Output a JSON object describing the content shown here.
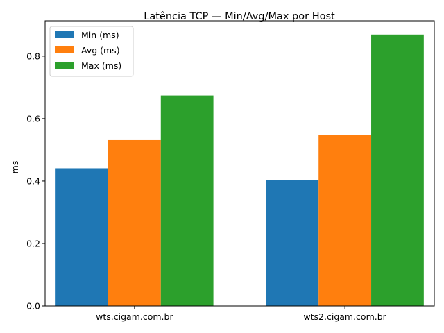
{
  "chart_data": {
    "type": "bar",
    "title": "Latência TCP — Min/Avg/Max por Host",
    "xlabel": "",
    "ylabel": "ms",
    "categories": [
      "wts.cigam.com.br",
      "wts2.cigam.com.br"
    ],
    "series": [
      {
        "name": "Min (ms)",
        "color": "#1f77b4",
        "values": [
          0.441,
          0.404
        ]
      },
      {
        "name": "Avg (ms)",
        "color": "#ff7f0e",
        "values": [
          0.531,
          0.547
        ]
      },
      {
        "name": "Max (ms)",
        "color": "#2ca02c",
        "values": [
          0.674,
          0.869
        ]
      }
    ],
    "ylim": [
      0,
      0.913
    ],
    "yticks": [
      0.0,
      0.2,
      0.4,
      0.6,
      0.8
    ],
    "ytick_labels": [
      "0.0",
      "0.2",
      "0.4",
      "0.6",
      "0.8"
    ],
    "grid": false,
    "legend_position": "top-left"
  }
}
